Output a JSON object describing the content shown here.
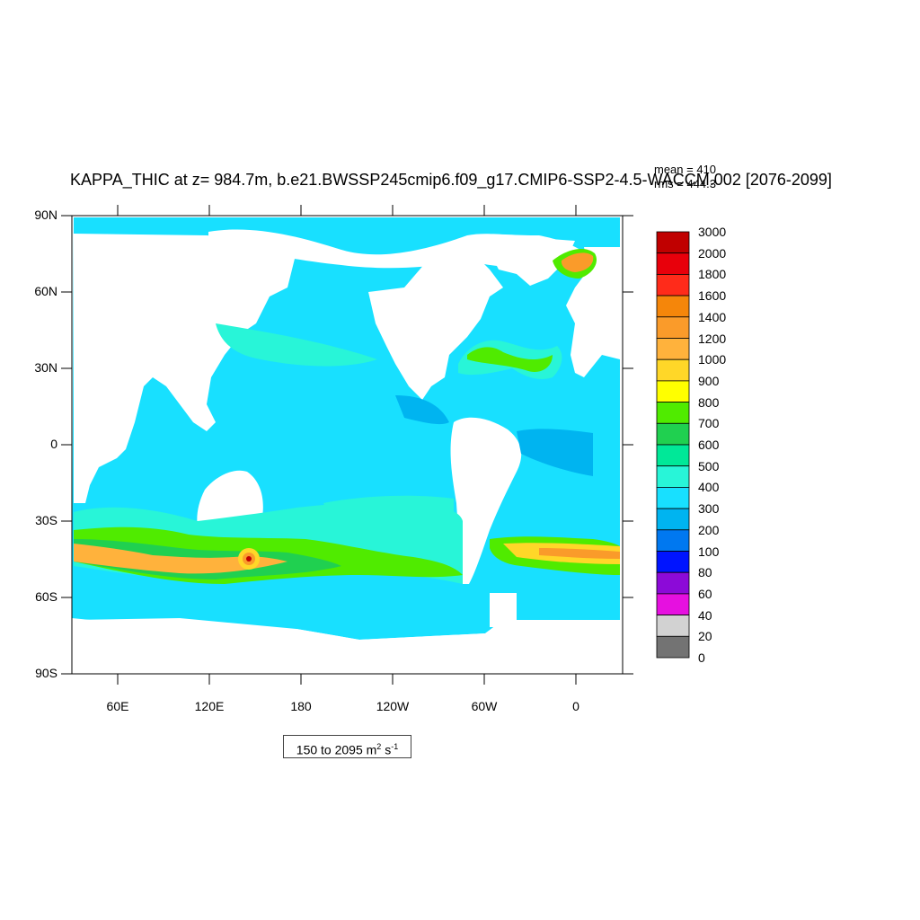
{
  "title": "KAPPA_THIC at z= 984.7m, b.e21.BWSSP245cmip6.f09_g17.CMIP6-SSP2-4.5-WACCM.002 [2076-2099]",
  "stats": {
    "mean": "mean = 410",
    "rms": "rms = 444.3"
  },
  "axes": {
    "y_labels": [
      "90N",
      "60N",
      "30N",
      "0",
      "30S",
      "60S",
      "90S"
    ],
    "x_labels": [
      "60E",
      "120E",
      "180",
      "120W",
      "60W",
      "0"
    ]
  },
  "range": {
    "text": "150 to 2095 m",
    "unit_exp1": "2",
    "unit_mid": " s",
    "unit_exp2": "-1"
  },
  "colorbar": {
    "labels": [
      "3000",
      "2000",
      "1800",
      "1600",
      "1400",
      "1200",
      "1000",
      "900",
      "800",
      "700",
      "600",
      "500",
      "400",
      "300",
      "200",
      "100",
      "80",
      "60",
      "40",
      "20",
      "0"
    ],
    "colors": [
      "#c00000",
      "#e8000b",
      "#ff2b1a",
      "#f5860a",
      "#fa9b2a",
      "#ffb23c",
      "#ffd728",
      "#ffff00",
      "#50eb00",
      "#20d050",
      "#00e898",
      "#28f5d8",
      "#18e0ff",
      "#00b4f0",
      "#0078f0",
      "#0014ff",
      "#8c0ad8",
      "#e610e0",
      "#d2d2d2",
      "#737373"
    ]
  },
  "chart_data": {
    "type": "heatmap",
    "variable": "KAPPA_THIC",
    "title": "KAPPA_THIC at z= 984.7m, b.e21.BWSSP245cmip6.f09_g17.CMIP6-SSP2-4.5-WACCM.002 [2076-2099]",
    "units": "m2 s-1",
    "mean": 410,
    "rms": 444.3,
    "min": 150,
    "max": 2095,
    "contour_levels": [
      0,
      20,
      40,
      60,
      80,
      100,
      200,
      300,
      400,
      500,
      600,
      700,
      800,
      900,
      1000,
      1200,
      1400,
      1600,
      1800,
      2000,
      3000
    ],
    "lat_range": [
      -90,
      90
    ],
    "lon_ticks": [
      "60E",
      "120E",
      "180",
      "120W",
      "60W",
      "0"
    ],
    "lat_ticks": [
      "90N",
      "60N",
      "30N",
      "0",
      "30S",
      "60S",
      "90S"
    ]
  }
}
